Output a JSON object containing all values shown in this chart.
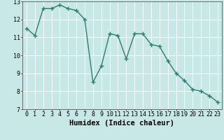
{
  "x": [
    0,
    1,
    2,
    3,
    4,
    5,
    6,
    7,
    8,
    9,
    10,
    11,
    12,
    13,
    14,
    15,
    16,
    17,
    18,
    19,
    20,
    21,
    22,
    23
  ],
  "y": [
    11.5,
    11.1,
    12.6,
    12.6,
    12.8,
    12.6,
    12.5,
    12.0,
    8.5,
    9.4,
    11.2,
    11.1,
    9.8,
    11.2,
    11.2,
    10.6,
    10.5,
    9.7,
    9.0,
    8.6,
    8.1,
    8.0,
    7.75,
    7.4
  ],
  "line_color": "#2e7d6e",
  "marker": "+",
  "bg_color": "#c8e8e8",
  "grid_color": "#ffffff",
  "xlabel": "Humidex (Indice chaleur)",
  "ylim": [
    7,
    13
  ],
  "xlim_min": -0.5,
  "xlim_max": 23.5,
  "yticks": [
    7,
    8,
    9,
    10,
    11,
    12,
    13
  ],
  "xticks": [
    0,
    1,
    2,
    3,
    4,
    5,
    6,
    7,
    8,
    9,
    10,
    11,
    12,
    13,
    14,
    15,
    16,
    17,
    18,
    19,
    20,
    21,
    22,
    23
  ],
  "xlabel_fontsize": 7.5,
  "tick_fontsize": 6,
  "linewidth": 1.0,
  "markersize": 4,
  "markeredgewidth": 1.0
}
